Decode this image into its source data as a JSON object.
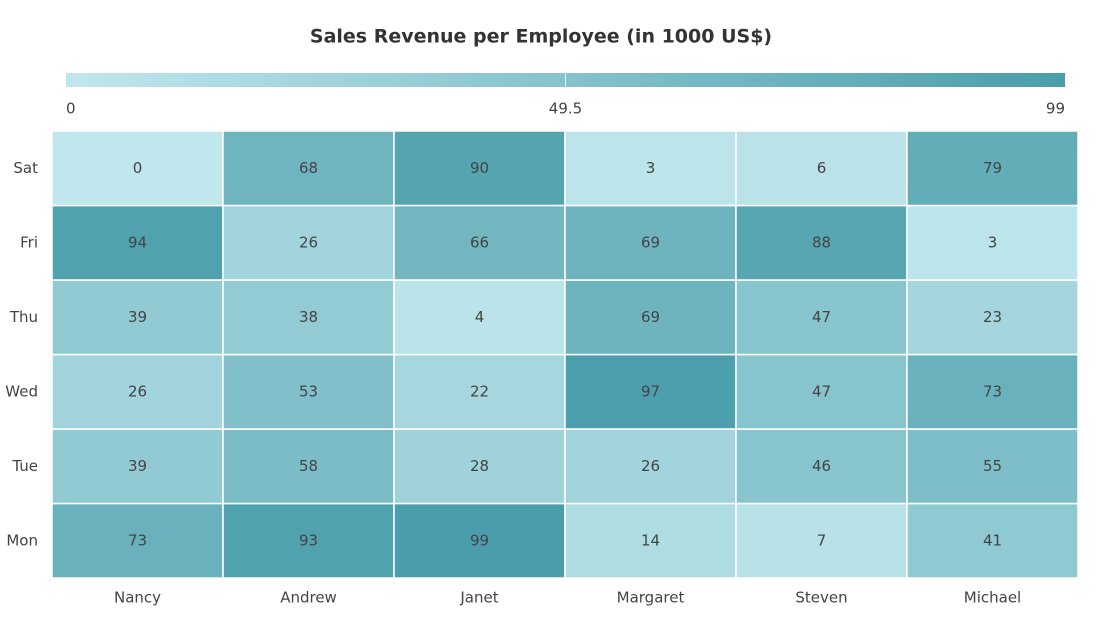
{
  "chart_data": {
    "type": "heatmap",
    "title": "Sales Revenue per Employee (in 1000 US$)",
    "x": [
      "Nancy",
      "Andrew",
      "Janet",
      "Margaret",
      "Steven",
      "Michael"
    ],
    "y": [
      "Mon",
      "Tue",
      "Wed",
      "Thu",
      "Fri",
      "Sat"
    ],
    "values": [
      [
        73,
        93,
        99,
        14,
        7,
        41
      ],
      [
        39,
        58,
        28,
        26,
        46,
        55
      ],
      [
        26,
        53,
        22,
        97,
        47,
        73
      ],
      [
        39,
        38,
        4,
        69,
        47,
        23
      ],
      [
        94,
        26,
        66,
        69,
        88,
        3
      ],
      [
        0,
        68,
        90,
        3,
        6,
        79
      ]
    ],
    "zlim": [
      0,
      99
    ],
    "colorbar_ticks": [
      0,
      49.5,
      99
    ],
    "colors": [
      "#c0e7ed",
      "#4a9eab"
    ]
  }
}
